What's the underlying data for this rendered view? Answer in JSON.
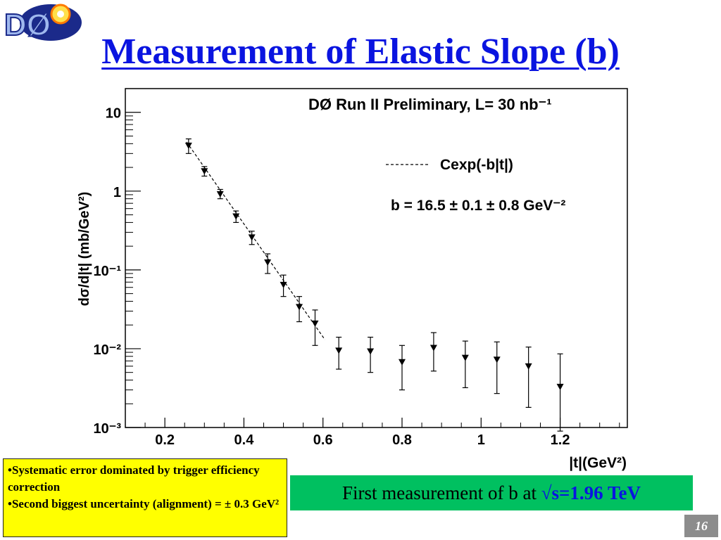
{
  "slide": {
    "title": "Measurement of Elastic Slope (b)",
    "logo_text": "DØ",
    "page_number": "16",
    "notes": [
      "•Systematic error dominated by trigger efficiency correction",
      "•Second biggest uncertainty (alignment) = ± 0.3 GeV²"
    ],
    "measurement": {
      "text": "First measurement of b at ",
      "highlight": "√s=1.96 TeV"
    }
  },
  "chart_data": {
    "type": "scatter",
    "title": "DØ Run II Preliminary, L= 30 nb⁻¹",
    "xlabel": "|t|(GeV²)",
    "ylabel": "dσ/d|t| (mb/GeV²)",
    "xlim": [
      0.1,
      1.37
    ],
    "ylim": [
      0.001,
      20
    ],
    "yscale": "log",
    "x_ticks": [
      "0.2",
      "0.4",
      "0.6",
      "0.8",
      "1",
      "1.2"
    ],
    "y_ticks": [
      "10⁻³",
      "10⁻²",
      "10⁻¹",
      "1",
      "10"
    ],
    "legend": {
      "fit_label": "Cexp(-b|t|)",
      "fit_result": "b = 16.5 ± 0.1 ± 0.8 GeV⁻²"
    },
    "grid": false,
    "series": [
      {
        "x": [
          0.26,
          0.3,
          0.34,
          0.38,
          0.42,
          0.46,
          0.5,
          0.54,
          0.58,
          0.64,
          0.72,
          0.8,
          0.88,
          0.96,
          1.04,
          1.12,
          1.2
        ],
        "y": [
          3.8,
          1.8,
          0.92,
          0.48,
          0.26,
          0.125,
          0.065,
          0.034,
          0.021,
          0.0095,
          0.0093,
          0.0068,
          0.0103,
          0.0077,
          0.0073,
          0.006,
          0.0033
        ],
        "y_low": [
          3.0,
          1.55,
          0.8,
          0.4,
          0.21,
          0.09,
          0.046,
          0.022,
          0.011,
          0.0055,
          0.005,
          0.003,
          0.0052,
          0.0032,
          0.0027,
          0.0018,
          0.0009
        ],
        "y_high": [
          4.6,
          2.05,
          1.05,
          0.56,
          0.31,
          0.16,
          0.086,
          0.046,
          0.031,
          0.014,
          0.014,
          0.011,
          0.016,
          0.0125,
          0.0122,
          0.0105,
          0.0086
        ]
      }
    ],
    "fit_line": {
      "x": [
        0.255,
        0.605
      ],
      "y": [
        4.2,
        0.013
      ]
    }
  }
}
